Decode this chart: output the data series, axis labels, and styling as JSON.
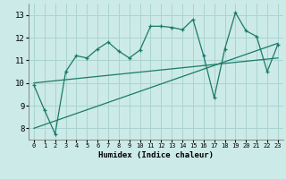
{
  "xlabel": "Humidex (Indice chaleur)",
  "bg_color": "#cceae7",
  "grid_color": "#aad4d0",
  "line_color": "#1a7a6a",
  "xlim": [
    -0.5,
    23.5
  ],
  "ylim": [
    7.5,
    13.5
  ],
  "yticks": [
    8,
    9,
    10,
    11,
    12,
    13
  ],
  "xticks": [
    0,
    1,
    2,
    3,
    4,
    5,
    6,
    7,
    8,
    9,
    10,
    11,
    12,
    13,
    14,
    15,
    16,
    17,
    18,
    19,
    20,
    21,
    22,
    23
  ],
  "series1_x": [
    0,
    1,
    2,
    3,
    4,
    5,
    6,
    7,
    8,
    9,
    10,
    11,
    12,
    13,
    14,
    15,
    16,
    17,
    18,
    19,
    20,
    21,
    22,
    23
  ],
  "series1_y": [
    9.9,
    8.8,
    7.75,
    10.5,
    11.2,
    11.1,
    11.5,
    11.8,
    11.4,
    11.1,
    11.45,
    12.5,
    12.5,
    12.45,
    12.35,
    12.8,
    11.2,
    9.35,
    11.5,
    13.1,
    12.3,
    12.05,
    10.5,
    11.7
  ],
  "series2_x": [
    0,
    23
  ],
  "series2_y": [
    10.0,
    11.1
  ],
  "series3_x": [
    0,
    23
  ],
  "series3_y": [
    8.0,
    11.75
  ],
  "marker": "+"
}
